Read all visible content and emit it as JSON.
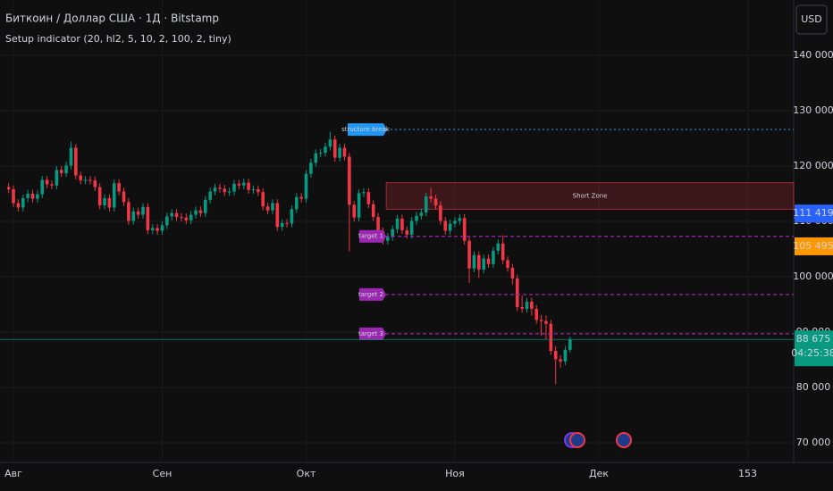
{
  "chart_data": {
    "type": "candlestick",
    "title": "Биткоин / Доллар США · 1Д · Bitstamp",
    "subtitle": "Setup indicator (20, hl2, 5, 10, 2, 100, 2, tiny)",
    "currency": "USD",
    "up_color": "#089981",
    "down_color": "#f23645",
    "x": [
      -1,
      0,
      1,
      2,
      3,
      4,
      5,
      6,
      7,
      8,
      9,
      10,
      11,
      12,
      13,
      14,
      15,
      16,
      17,
      18,
      19,
      20,
      21,
      22,
      23,
      24,
      25,
      26,
      27,
      28,
      29,
      30,
      31,
      32,
      33,
      34,
      35,
      36,
      37,
      38,
      39,
      40,
      41,
      42,
      43,
      44,
      45,
      46,
      47,
      48,
      49,
      50,
      51,
      52,
      53,
      54,
      55,
      56,
      57,
      58,
      59,
      60,
      61,
      62,
      63,
      64,
      65,
      66,
      67,
      68,
      69,
      70,
      71,
      72,
      73,
      74,
      75,
      76,
      77,
      78,
      79,
      80,
      81,
      82,
      83,
      84,
      85,
      86,
      87,
      88,
      89,
      90,
      91,
      92,
      93,
      94,
      95,
      96,
      97,
      98,
      99,
      100,
      101,
      102,
      103,
      104,
      105,
      106,
      107,
      108,
      109,
      110,
      111,
      112,
      113,
      114,
      115,
      116
    ],
    "open": [
      116200,
      115800,
      113300,
      112500,
      114200,
      115000,
      114100,
      114900,
      117500,
      116700,
      116500,
      119300,
      118700,
      120100,
      123300,
      118300,
      117400,
      117500,
      117400,
      116200,
      112900,
      114200,
      112500,
      116900,
      115400,
      113500,
      110100,
      111800,
      111200,
      112600,
      108400,
      108800,
      108300,
      109300,
      110900,
      111500,
      110800,
      110700,
      110200,
      111200,
      112000,
      111500,
      113900,
      115400,
      116100,
      115900,
      115300,
      115400,
      116800,
      116500,
      117000,
      115700,
      115800,
      115300,
      112700,
      112000,
      113300,
      109000,
      109700,
      109600,
      112200,
      114400,
      114100,
      118600,
      120600,
      122300,
      122400,
      123500,
      124800,
      121500,
      123300,
      121700,
      113000,
      110700,
      115100,
      115300,
      113100,
      110800,
      108200,
      106500,
      107200,
      108600,
      110500,
      108400,
      107600,
      110100,
      111000,
      111600,
      114500,
      114100,
      112900,
      110100,
      108300,
      109600,
      110100,
      110600,
      106500,
      101500,
      103900,
      101300,
      103300,
      102300,
      104700,
      106000,
      103000,
      101600,
      99700,
      94500,
      94200,
      95500,
      94200,
      92200,
      92000,
      91500,
      86600,
      85100,
      84700,
      86800
    ],
    "high": [
      116900,
      116500,
      114000,
      114900,
      115700,
      115700,
      115600,
      118200,
      118200,
      117400,
      120000,
      120000,
      120800,
      124400,
      124000,
      119000,
      118200,
      118200,
      118100,
      116900,
      114900,
      114900,
      117600,
      117600,
      116100,
      114200,
      112500,
      112500,
      113300,
      113300,
      109500,
      109500,
      110000,
      111600,
      112200,
      112200,
      111500,
      111400,
      111900,
      112700,
      112700,
      114600,
      116100,
      116800,
      116800,
      116600,
      116100,
      117500,
      117500,
      117700,
      117700,
      116500,
      116500,
      116000,
      113400,
      114000,
      114000,
      110400,
      110400,
      112900,
      115100,
      115100,
      119300,
      121300,
      123000,
      123100,
      124200,
      126200,
      125500,
      124000,
      124000,
      122400,
      113700,
      115800,
      116000,
      116000,
      113800,
      111500,
      108900,
      107900,
      109300,
      111200,
      111200,
      109100,
      110800,
      111700,
      112300,
      115200,
      116100,
      114800,
      113600,
      110800,
      110300,
      110800,
      111300,
      111300,
      107200,
      104600,
      104600,
      104000,
      104000,
      105400,
      106700,
      107500,
      103700,
      102300,
      100400,
      96600,
      96200,
      96200,
      94900,
      93100,
      93000,
      92200,
      87500,
      85800,
      87500,
      89200
    ],
    "low": [
      115100,
      112600,
      111800,
      111800,
      113500,
      113400,
      113400,
      114200,
      116000,
      115800,
      115800,
      118000,
      118000,
      119400,
      117600,
      116700,
      116700,
      116700,
      115500,
      112200,
      112200,
      111800,
      111800,
      114700,
      112800,
      109400,
      109400,
      110500,
      110500,
      107700,
      107700,
      107600,
      107600,
      108600,
      110200,
      110100,
      110000,
      109500,
      109500,
      110500,
      110800,
      110800,
      113200,
      114700,
      115200,
      114600,
      114600,
      114700,
      115800,
      115800,
      115000,
      115000,
      114600,
      112000,
      111300,
      111300,
      108300,
      108300,
      108900,
      108900,
      111500,
      113400,
      113400,
      117900,
      119900,
      121600,
      121700,
      122800,
      120800,
      120800,
      121000,
      104600,
      110000,
      110000,
      114400,
      112400,
      110100,
      107500,
      105800,
      105800,
      106500,
      107900,
      107700,
      106900,
      106900,
      109400,
      110300,
      110900,
      113400,
      112200,
      109400,
      107600,
      107600,
      108900,
      109400,
      105800,
      98900,
      100800,
      99800,
      100600,
      101600,
      101600,
      104000,
      102300,
      100900,
      98600,
      93800,
      93500,
      93500,
      93000,
      91500,
      89300,
      88600,
      85900,
      80600,
      83600,
      84000,
      86300
    ],
    "close": [
      115800,
      113300,
      112500,
      114200,
      115000,
      114100,
      114900,
      117500,
      116700,
      116500,
      119300,
      118700,
      120100,
      123300,
      118300,
      117400,
      117500,
      117400,
      116200,
      112900,
      114200,
      112500,
      116900,
      115400,
      113500,
      110100,
      111800,
      111200,
      112600,
      108400,
      108800,
      108300,
      109300,
      110900,
      111500,
      110800,
      110700,
      110200,
      111200,
      112000,
      111500,
      113900,
      115400,
      116100,
      115900,
      115300,
      115400,
      116800,
      116500,
      117000,
      115700,
      115800,
      115300,
      112700,
      112000,
      113300,
      109000,
      109700,
      109600,
      112200,
      114400,
      114100,
      118600,
      120600,
      122300,
      122400,
      123500,
      124800,
      121500,
      123300,
      121700,
      113000,
      110700,
      115100,
      115300,
      113100,
      110800,
      108200,
      106500,
      107200,
      108600,
      110500,
      108400,
      107600,
      110100,
      111000,
      111600,
      114500,
      114100,
      112900,
      110100,
      108300,
      109600,
      110100,
      110600,
      106500,
      101500,
      103900,
      101300,
      103300,
      102300,
      104700,
      106000,
      103000,
      101600,
      99700,
      94500,
      94200,
      95500,
      94200,
      92200,
      92000,
      91500,
      86600,
      85100,
      84700,
      86800,
      88675
    ],
    "xlim": [
      -2.8,
      162.6
    ],
    "xticks": [
      {
        "value": 0,
        "label": "Авг"
      },
      {
        "value": 31,
        "label": "Сен"
      },
      {
        "value": 61,
        "label": "Окт"
      },
      {
        "value": 92,
        "label": "Ноя"
      },
      {
        "value": 122,
        "label": "Дек"
      },
      153
    ],
    "ylim": [
      66452,
      150000
    ],
    "yticks": [
      {
        "value": 70000,
        "label": "70 000"
      },
      {
        "value": 80000,
        "label": "80 000"
      },
      {
        "value": 90000,
        "label": "90 000"
      },
      {
        "value": 100000,
        "label": "100 000"
      },
      {
        "value": 110000,
        "label": "110 000"
      },
      {
        "value": 120000,
        "label": "120 000"
      },
      {
        "value": 130000,
        "label": "130 000"
      },
      {
        "value": 140000,
        "label": "140 000"
      }
    ],
    "grid": true,
    "levels": [
      {
        "label": "structure break",
        "value": 126600,
        "color": "#2196f3",
        "style": "dotted"
      },
      {
        "label": "target 1",
        "value": 107300,
        "color": "#9c27b0",
        "style": "dashed"
      },
      {
        "label": "target 2",
        "value": 96800,
        "color": "#9c27b0",
        "style": "dashed"
      },
      {
        "label": "target 3",
        "value": 89700,
        "color": "#9c27b0",
        "style": "dashed"
      }
    ],
    "zone": {
      "label": "Short Zone",
      "top": 117000,
      "bottom": 112200,
      "from_x": 77.7,
      "color": "#f23645"
    },
    "price_labels": [
      {
        "value": 111419,
        "label": "111 419",
        "color": "#2962ff"
      },
      {
        "value": 105495,
        "label": "105 495",
        "color": "#ff9800"
      },
      {
        "value": 88675,
        "label": "88 675",
        "color": "#089981",
        "countdown": "04:25:38"
      }
    ]
  }
}
